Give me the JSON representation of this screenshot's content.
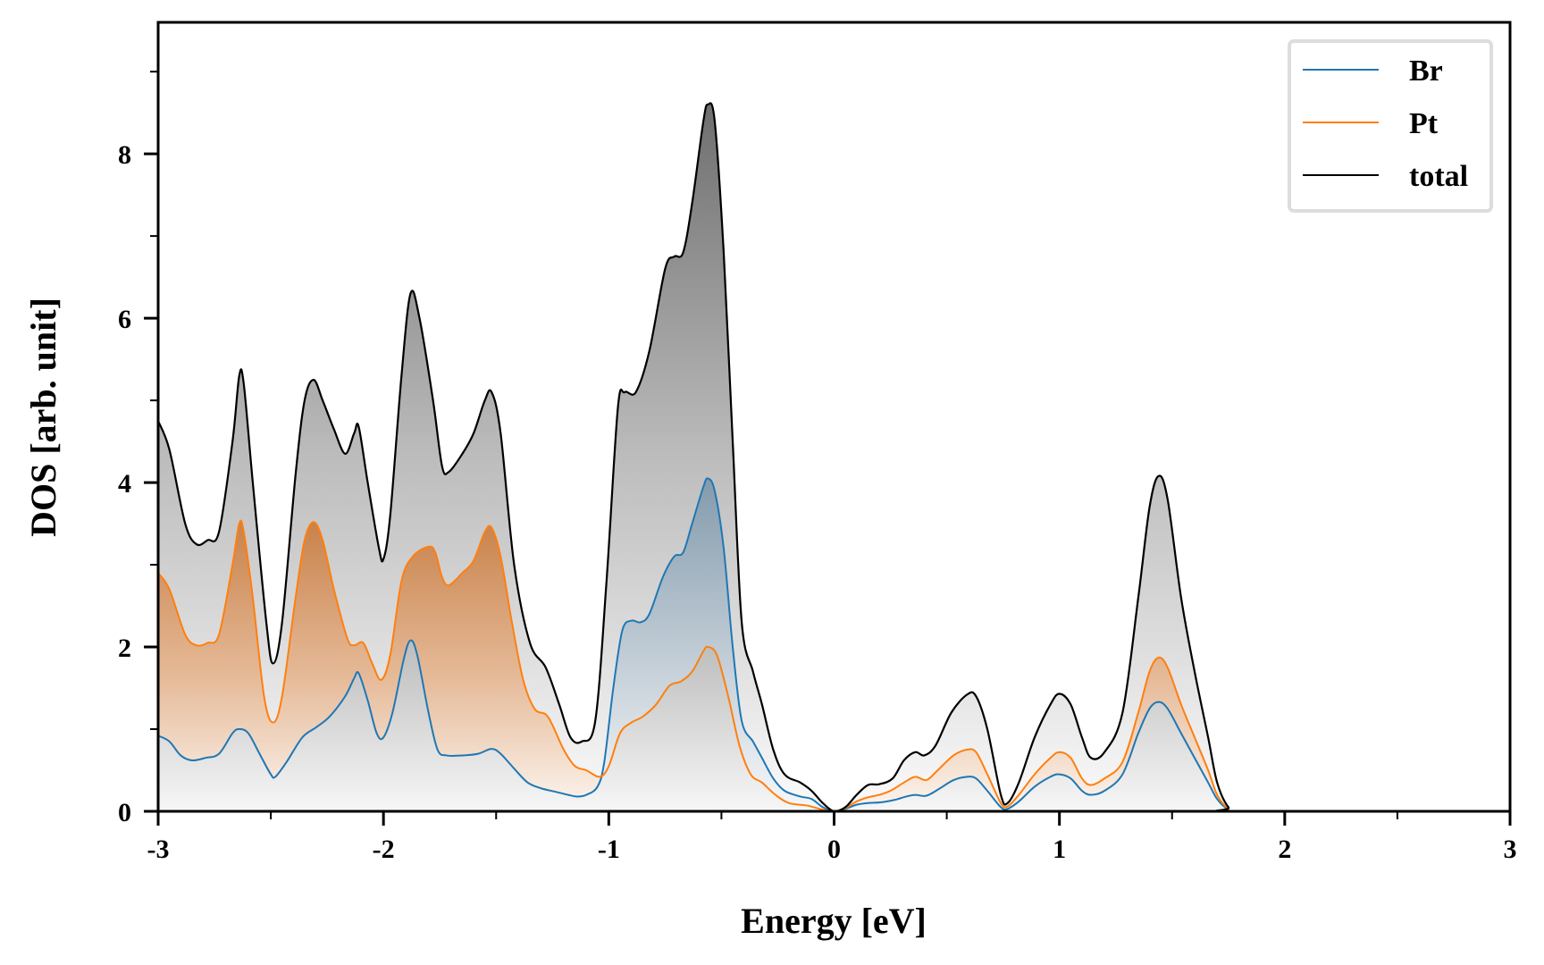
{
  "chart_data": {
    "type": "area",
    "title": "",
    "xlabel": "Energy [eV]",
    "ylabel": "DOS [arb. unit]",
    "xlim": [
      -3,
      3
    ],
    "ylim": [
      0,
      9.6
    ],
    "grid": false,
    "legend_position": "top-right",
    "x_ticks": [
      -3,
      -2,
      -1,
      0,
      1,
      2,
      3
    ],
    "x_tick_labels": [
      "-3",
      "-2",
      "-1",
      "0",
      "1",
      "2",
      "3"
    ],
    "x_minor_ticks": [
      -2.5,
      -1.5,
      -0.5,
      0.5,
      1.5,
      2.5
    ],
    "y_ticks": [
      0,
      2,
      4,
      6,
      8
    ],
    "y_tick_labels": [
      "0",
      "2",
      "4",
      "6",
      "8"
    ],
    "y_minor_ticks": [
      1,
      3,
      5,
      7,
      9
    ],
    "series": [
      {
        "name": "total",
        "color": "#000000",
        "fill": "gray-gradient",
        "points": [
          [
            -3.0,
            4.75
          ],
          [
            -2.95,
            4.4
          ],
          [
            -2.88,
            3.5
          ],
          [
            -2.83,
            3.25
          ],
          [
            -2.78,
            3.3
          ],
          [
            -2.73,
            3.4
          ],
          [
            -2.67,
            4.5
          ],
          [
            -2.64,
            5.3
          ],
          [
            -2.62,
            5.2
          ],
          [
            -2.58,
            4.0
          ],
          [
            -2.52,
            2.3
          ],
          [
            -2.49,
            1.8
          ],
          [
            -2.45,
            2.3
          ],
          [
            -2.39,
            4.1
          ],
          [
            -2.35,
            5.0
          ],
          [
            -2.31,
            5.25
          ],
          [
            -2.27,
            5.0
          ],
          [
            -2.22,
            4.65
          ],
          [
            -2.17,
            4.35
          ],
          [
            -2.13,
            4.6
          ],
          [
            -2.11,
            4.68
          ],
          [
            -2.07,
            4.0
          ],
          [
            -2.02,
            3.2
          ],
          [
            -2.0,
            3.07
          ],
          [
            -1.97,
            3.6
          ],
          [
            -1.92,
            5.3
          ],
          [
            -1.88,
            6.3
          ],
          [
            -1.84,
            6.0
          ],
          [
            -1.78,
            5.0
          ],
          [
            -1.74,
            4.2
          ],
          [
            -1.71,
            4.13
          ],
          [
            -1.65,
            4.35
          ],
          [
            -1.6,
            4.6
          ],
          [
            -1.55,
            5.0
          ],
          [
            -1.52,
            5.1
          ],
          [
            -1.48,
            4.6
          ],
          [
            -1.42,
            3.0
          ],
          [
            -1.35,
            2.05
          ],
          [
            -1.28,
            1.75
          ],
          [
            -1.22,
            1.3
          ],
          [
            -1.17,
            0.9
          ],
          [
            -1.12,
            0.85
          ],
          [
            -1.06,
            1.1
          ],
          [
            -1.01,
            2.8
          ],
          [
            -0.96,
            4.9
          ],
          [
            -0.93,
            5.1
          ],
          [
            -0.88,
            5.1
          ],
          [
            -0.82,
            5.6
          ],
          [
            -0.75,
            6.6
          ],
          [
            -0.71,
            6.75
          ],
          [
            -0.67,
            6.8
          ],
          [
            -0.63,
            7.4
          ],
          [
            -0.58,
            8.4
          ],
          [
            -0.56,
            8.6
          ],
          [
            -0.53,
            8.4
          ],
          [
            -0.49,
            6.8
          ],
          [
            -0.45,
            4.5
          ],
          [
            -0.41,
            2.3
          ],
          [
            -0.36,
            1.7
          ],
          [
            -0.32,
            1.3
          ],
          [
            -0.27,
            0.75
          ],
          [
            -0.22,
            0.45
          ],
          [
            -0.15,
            0.35
          ],
          [
            -0.1,
            0.25
          ],
          [
            -0.05,
            0.1
          ],
          [
            0.0,
            0.0
          ],
          [
            0.05,
            0.05
          ],
          [
            0.1,
            0.2
          ],
          [
            0.15,
            0.32
          ],
          [
            0.2,
            0.33
          ],
          [
            0.26,
            0.4
          ],
          [
            0.31,
            0.62
          ],
          [
            0.36,
            0.72
          ],
          [
            0.4,
            0.68
          ],
          [
            0.45,
            0.8
          ],
          [
            0.52,
            1.2
          ],
          [
            0.59,
            1.42
          ],
          [
            0.63,
            1.4
          ],
          [
            0.68,
            1.0
          ],
          [
            0.74,
            0.2
          ],
          [
            0.77,
            0.1
          ],
          [
            0.82,
            0.35
          ],
          [
            0.89,
            0.9
          ],
          [
            0.96,
            1.3
          ],
          [
            1.0,
            1.43
          ],
          [
            1.05,
            1.3
          ],
          [
            1.1,
            0.9
          ],
          [
            1.14,
            0.65
          ],
          [
            1.2,
            0.72
          ],
          [
            1.28,
            1.2
          ],
          [
            1.35,
            2.6
          ],
          [
            1.4,
            3.7
          ],
          [
            1.44,
            4.08
          ],
          [
            1.48,
            3.8
          ],
          [
            1.54,
            2.6
          ],
          [
            1.6,
            1.7
          ],
          [
            1.66,
            0.9
          ],
          [
            1.7,
            0.35
          ],
          [
            1.75,
            0.05
          ],
          [
            1.8,
            0.0
          ],
          [
            3.0,
            0.0
          ]
        ]
      },
      {
        "name": "Pt",
        "color": "#ff7f0e",
        "fill": "orange-gradient",
        "points": [
          [
            -3.0,
            2.9
          ],
          [
            -2.95,
            2.7
          ],
          [
            -2.88,
            2.15
          ],
          [
            -2.83,
            2.02
          ],
          [
            -2.78,
            2.05
          ],
          [
            -2.73,
            2.15
          ],
          [
            -2.67,
            3.0
          ],
          [
            -2.64,
            3.5
          ],
          [
            -2.62,
            3.4
          ],
          [
            -2.58,
            2.6
          ],
          [
            -2.53,
            1.4
          ],
          [
            -2.49,
            1.08
          ],
          [
            -2.45,
            1.4
          ],
          [
            -2.39,
            2.6
          ],
          [
            -2.35,
            3.3
          ],
          [
            -2.31,
            3.52
          ],
          [
            -2.27,
            3.3
          ],
          [
            -2.22,
            2.7
          ],
          [
            -2.16,
            2.1
          ],
          [
            -2.13,
            2.02
          ],
          [
            -2.09,
            2.05
          ],
          [
            -2.05,
            1.8
          ],
          [
            -2.01,
            1.6
          ],
          [
            -1.97,
            1.9
          ],
          [
            -1.92,
            2.8
          ],
          [
            -1.87,
            3.1
          ],
          [
            -1.8,
            3.22
          ],
          [
            -1.77,
            3.15
          ],
          [
            -1.74,
            2.85
          ],
          [
            -1.71,
            2.75
          ],
          [
            -1.65,
            2.9
          ],
          [
            -1.6,
            3.05
          ],
          [
            -1.55,
            3.4
          ],
          [
            -1.52,
            3.45
          ],
          [
            -1.48,
            3.1
          ],
          [
            -1.43,
            2.3
          ],
          [
            -1.38,
            1.6
          ],
          [
            -1.33,
            1.25
          ],
          [
            -1.28,
            1.18
          ],
          [
            -1.25,
            1.05
          ],
          [
            -1.2,
            0.75
          ],
          [
            -1.15,
            0.55
          ],
          [
            -1.1,
            0.5
          ],
          [
            -1.04,
            0.42
          ],
          [
            -1.0,
            0.55
          ],
          [
            -0.95,
            0.95
          ],
          [
            -0.9,
            1.08
          ],
          [
            -0.85,
            1.15
          ],
          [
            -0.79,
            1.3
          ],
          [
            -0.73,
            1.53
          ],
          [
            -0.68,
            1.58
          ],
          [
            -0.63,
            1.7
          ],
          [
            -0.58,
            1.95
          ],
          [
            -0.56,
            2.0
          ],
          [
            -0.52,
            1.9
          ],
          [
            -0.47,
            1.4
          ],
          [
            -0.42,
            0.8
          ],
          [
            -0.37,
            0.45
          ],
          [
            -0.32,
            0.35
          ],
          [
            -0.26,
            0.2
          ],
          [
            -0.2,
            0.1
          ],
          [
            -0.12,
            0.07
          ],
          [
            -0.05,
            0.02
          ],
          [
            0.0,
            0.0
          ],
          [
            0.05,
            0.04
          ],
          [
            0.1,
            0.12
          ],
          [
            0.15,
            0.17
          ],
          [
            0.2,
            0.2
          ],
          [
            0.25,
            0.25
          ],
          [
            0.31,
            0.35
          ],
          [
            0.36,
            0.42
          ],
          [
            0.41,
            0.38
          ],
          [
            0.46,
            0.5
          ],
          [
            0.53,
            0.68
          ],
          [
            0.59,
            0.75
          ],
          [
            0.63,
            0.72
          ],
          [
            0.68,
            0.45
          ],
          [
            0.74,
            0.1
          ],
          [
            0.77,
            0.06
          ],
          [
            0.82,
            0.2
          ],
          [
            0.89,
            0.45
          ],
          [
            0.96,
            0.65
          ],
          [
            1.0,
            0.72
          ],
          [
            1.05,
            0.65
          ],
          [
            1.1,
            0.4
          ],
          [
            1.14,
            0.32
          ],
          [
            1.2,
            0.4
          ],
          [
            1.28,
            0.6
          ],
          [
            1.35,
            1.2
          ],
          [
            1.4,
            1.7
          ],
          [
            1.44,
            1.87
          ],
          [
            1.48,
            1.75
          ],
          [
            1.54,
            1.3
          ],
          [
            1.6,
            0.9
          ],
          [
            1.66,
            0.5
          ],
          [
            1.7,
            0.2
          ],
          [
            1.75,
            0.03
          ],
          [
            1.8,
            0.0
          ],
          [
            3.0,
            0.0
          ]
        ]
      },
      {
        "name": "Br",
        "color": "#1f77b4",
        "fill": "blue-gradient",
        "points": [
          [
            -3.0,
            0.92
          ],
          [
            -2.95,
            0.85
          ],
          [
            -2.9,
            0.68
          ],
          [
            -2.85,
            0.62
          ],
          [
            -2.79,
            0.65
          ],
          [
            -2.73,
            0.7
          ],
          [
            -2.67,
            0.95
          ],
          [
            -2.64,
            1.0
          ],
          [
            -2.6,
            0.95
          ],
          [
            -2.55,
            0.7
          ],
          [
            -2.5,
            0.45
          ],
          [
            -2.48,
            0.42
          ],
          [
            -2.43,
            0.6
          ],
          [
            -2.36,
            0.9
          ],
          [
            -2.3,
            1.02
          ],
          [
            -2.24,
            1.15
          ],
          [
            -2.17,
            1.4
          ],
          [
            -2.13,
            1.62
          ],
          [
            -2.11,
            1.68
          ],
          [
            -2.07,
            1.35
          ],
          [
            -2.03,
            0.95
          ],
          [
            -2.0,
            0.9
          ],
          [
            -1.96,
            1.2
          ],
          [
            -1.91,
            1.85
          ],
          [
            -1.88,
            2.08
          ],
          [
            -1.85,
            1.9
          ],
          [
            -1.8,
            1.2
          ],
          [
            -1.76,
            0.75
          ],
          [
            -1.72,
            0.68
          ],
          [
            -1.65,
            0.68
          ],
          [
            -1.58,
            0.7
          ],
          [
            -1.52,
            0.76
          ],
          [
            -1.48,
            0.7
          ],
          [
            -1.42,
            0.52
          ],
          [
            -1.36,
            0.35
          ],
          [
            -1.3,
            0.28
          ],
          [
            -1.24,
            0.24
          ],
          [
            -1.18,
            0.2
          ],
          [
            -1.14,
            0.18
          ],
          [
            -1.1,
            0.2
          ],
          [
            -1.05,
            0.3
          ],
          [
            -1.02,
            0.6
          ],
          [
            -0.98,
            1.5
          ],
          [
            -0.94,
            2.2
          ],
          [
            -0.9,
            2.32
          ],
          [
            -0.86,
            2.3
          ],
          [
            -0.82,
            2.4
          ],
          [
            -0.76,
            2.85
          ],
          [
            -0.71,
            3.1
          ],
          [
            -0.67,
            3.15
          ],
          [
            -0.63,
            3.5
          ],
          [
            -0.58,
            3.95
          ],
          [
            -0.56,
            4.05
          ],
          [
            -0.53,
            3.9
          ],
          [
            -0.49,
            3.2
          ],
          [
            -0.45,
            2.0
          ],
          [
            -0.41,
            1.1
          ],
          [
            -0.36,
            0.85
          ],
          [
            -0.32,
            0.65
          ],
          [
            -0.27,
            0.4
          ],
          [
            -0.22,
            0.25
          ],
          [
            -0.15,
            0.18
          ],
          [
            -0.1,
            0.15
          ],
          [
            -0.05,
            0.05
          ],
          [
            0.0,
            0.0
          ],
          [
            0.05,
            0.03
          ],
          [
            0.1,
            0.08
          ],
          [
            0.15,
            0.1
          ],
          [
            0.21,
            0.11
          ],
          [
            0.27,
            0.14
          ],
          [
            0.32,
            0.18
          ],
          [
            0.36,
            0.2
          ],
          [
            0.41,
            0.19
          ],
          [
            0.47,
            0.28
          ],
          [
            0.53,
            0.38
          ],
          [
            0.59,
            0.42
          ],
          [
            0.63,
            0.4
          ],
          [
            0.68,
            0.25
          ],
          [
            0.74,
            0.05
          ],
          [
            0.77,
            0.03
          ],
          [
            0.82,
            0.12
          ],
          [
            0.89,
            0.3
          ],
          [
            0.96,
            0.42
          ],
          [
            1.0,
            0.45
          ],
          [
            1.05,
            0.4
          ],
          [
            1.1,
            0.25
          ],
          [
            1.14,
            0.2
          ],
          [
            1.2,
            0.25
          ],
          [
            1.28,
            0.45
          ],
          [
            1.35,
            0.95
          ],
          [
            1.4,
            1.25
          ],
          [
            1.44,
            1.33
          ],
          [
            1.48,
            1.25
          ],
          [
            1.54,
            0.95
          ],
          [
            1.6,
            0.65
          ],
          [
            1.66,
            0.35
          ],
          [
            1.7,
            0.15
          ],
          [
            1.75,
            0.02
          ],
          [
            1.8,
            0.0
          ],
          [
            3.0,
            0.0
          ]
        ]
      }
    ],
    "legend": [
      {
        "label": "Br",
        "color": "#1f77b4"
      },
      {
        "label": "Pt",
        "color": "#ff7f0e"
      },
      {
        "label": "total",
        "color": "#000000"
      }
    ]
  }
}
